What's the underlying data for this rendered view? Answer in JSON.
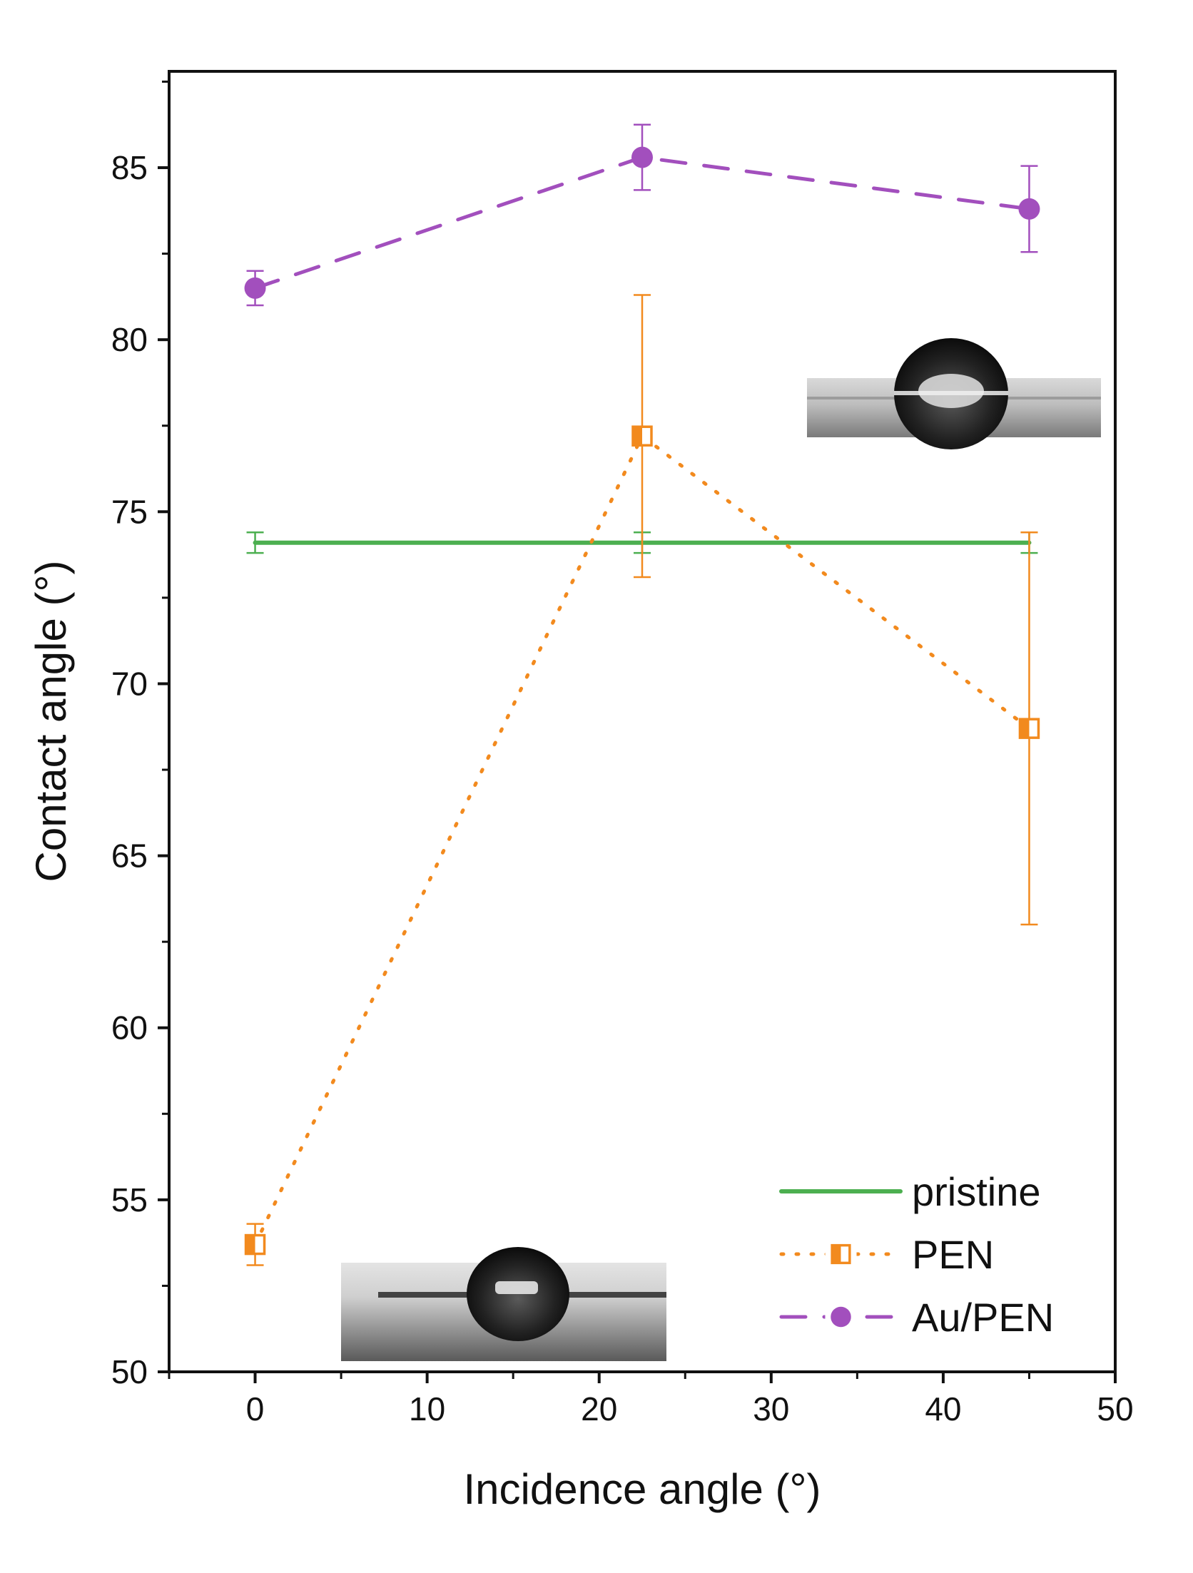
{
  "chart_data": {
    "type": "line",
    "title": "",
    "xlabel": "Incidence angle (°)",
    "ylabel": "Contact angle (°)",
    "xlim": [
      -5,
      50
    ],
    "ylim": [
      50,
      87.8
    ],
    "xticks": [
      0,
      10,
      20,
      30,
      40,
      50
    ],
    "yticks": [
      50,
      55,
      60,
      65,
      70,
      75,
      80,
      85
    ],
    "xtick_labels": [
      "0",
      "10",
      "20",
      "30",
      "40",
      "50"
    ],
    "ytick_labels": [
      "50",
      "55",
      "60",
      "65",
      "70",
      "75",
      "80",
      "85"
    ],
    "grid": false,
    "legend_position": "bottom-right",
    "series": [
      {
        "name": "pristine",
        "color": "#4caf50",
        "line_style": "solid",
        "marker": "none",
        "x": [
          0,
          22.5,
          45
        ],
        "y": [
          74.1,
          74.1,
          74.1
        ],
        "err": [
          0.3,
          0.3,
          0.3
        ]
      },
      {
        "name": "PEN",
        "color": "#f28a1e",
        "line_style": "dotted",
        "marker": "half-filled-square",
        "x": [
          0,
          22.5,
          45
        ],
        "y": [
          53.7,
          77.2,
          68.7
        ],
        "err": [
          0.6,
          4.1,
          5.7
        ]
      },
      {
        "name": "Au/PEN",
        "color": "#a24fbd",
        "line_style": "dashed",
        "marker": "circle",
        "x": [
          0,
          22.5,
          45
        ],
        "y": [
          81.5,
          85.3,
          83.8
        ],
        "err": [
          0.5,
          0.95,
          1.25
        ]
      }
    ],
    "insets": [
      {
        "name": "droplet-photo-high-contact-angle",
        "anchor": "upper-right"
      },
      {
        "name": "droplet-photo-low-contact-angle",
        "anchor": "lower-middle"
      }
    ]
  }
}
